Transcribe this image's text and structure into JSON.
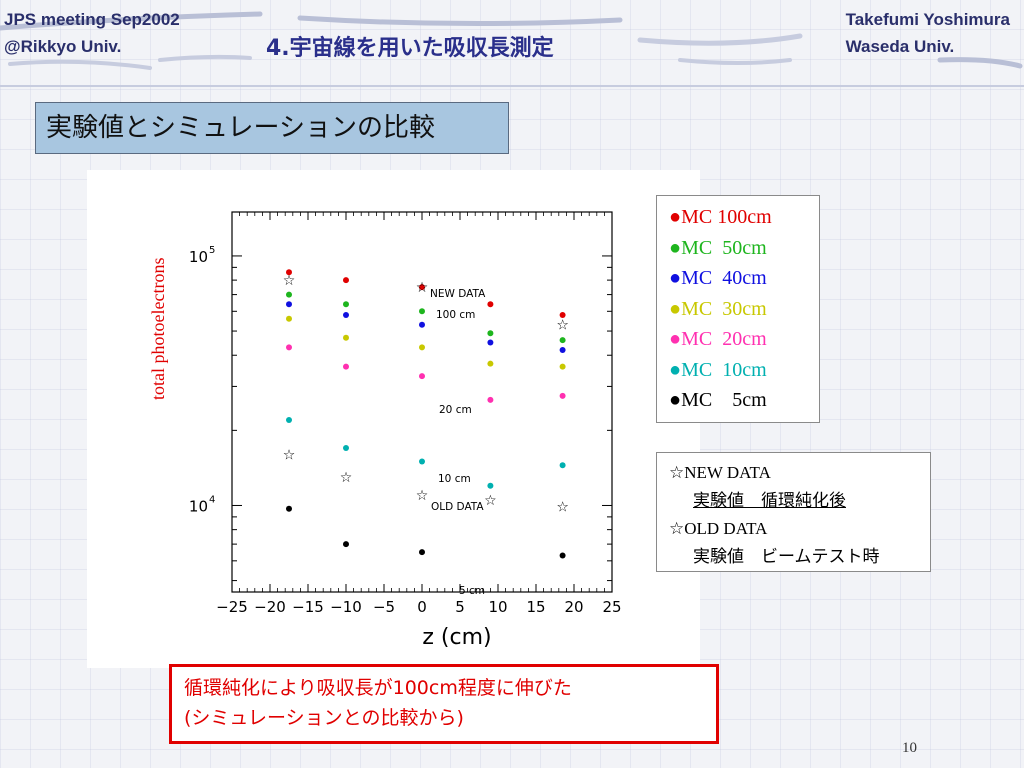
{
  "header": {
    "left_line1": "JPS meeting Sep2002",
    "left_line2": "@Rikkyo Univ.",
    "right_line1": "Takefumi Yoshimura",
    "right_line2": "Waseda Univ.",
    "title": "4.宇宙線を用いた吸収長測定"
  },
  "section_title": "実験値とシミュレーションの比較",
  "legend": {
    "items": [
      {
        "marker": "●",
        "label": "MC 100cm",
        "color": "#e00000"
      },
      {
        "marker": "●",
        "label": "MC  50cm",
        "color": "#1eb51e"
      },
      {
        "marker": "●",
        "label": "MC  40cm",
        "color": "#1010e0"
      },
      {
        "marker": "●",
        "label": "MC  30cm",
        "color": "#c8c800"
      },
      {
        "marker": "●",
        "label": "MC  20cm",
        "color": "#ff30b0"
      },
      {
        "marker": "●",
        "label": "MC  10cm",
        "color": "#00b0b0"
      },
      {
        "marker": "●",
        "label": "MC    5cm",
        "color": "#000000"
      }
    ]
  },
  "notes": {
    "new_data": "☆NEW DATA",
    "new_data_desc": "実験値　循環純化後",
    "old_data": "☆OLD DATA",
    "old_data_desc": "実験値　ビームテスト時"
  },
  "conclusion": {
    "line1": "循環純化により吸収長が100cm程度に伸びた",
    "line2": "(シミュレーションとの比較から)"
  },
  "page_number": "10",
  "chart_data": {
    "type": "scatter",
    "ylabel": "total photoelectrons",
    "xlabel": "z (cm)",
    "xlim": [
      -25,
      25
    ],
    "ylim": [
      4500,
      150000
    ],
    "y_scale": "log",
    "x_ticks": [
      "−25",
      "−20",
      "−15",
      "−10",
      "−5",
      "0",
      "5",
      "10",
      "15",
      "20",
      "25"
    ],
    "y_ticks": [
      {
        "value": 10000,
        "label": "10",
        "exp": "4"
      },
      {
        "value": 100000,
        "label": "10",
        "exp": "5"
      }
    ],
    "x": [
      -17.5,
      -10,
      0,
      9,
      18.5
    ],
    "series": [
      {
        "name": "MC 100cm",
        "color": "#e00000",
        "marker": "dot",
        "values": [
          86000,
          80000,
          75000,
          64000,
          58000
        ]
      },
      {
        "name": "MC  50cm",
        "color": "#1eb51e",
        "marker": "dot",
        "values": [
          70000,
          64000,
          60000,
          49000,
          46000
        ]
      },
      {
        "name": "MC  40cm",
        "color": "#1010e0",
        "marker": "dot",
        "values": [
          64000,
          58000,
          53000,
          45000,
          42000
        ]
      },
      {
        "name": "MC  30cm",
        "color": "#c8c800",
        "marker": "dot",
        "values": [
          56000,
          47000,
          43000,
          37000,
          36000
        ]
      },
      {
        "name": "MC  20cm",
        "color": "#ff30b0",
        "marker": "dot",
        "values": [
          43000,
          36000,
          33000,
          26500,
          27500
        ]
      },
      {
        "name": "MC  10cm",
        "color": "#00b0b0",
        "marker": "dot",
        "values": [
          22000,
          17000,
          15000,
          12000,
          14500
        ]
      },
      {
        "name": "MC    5cm",
        "color": "#000000",
        "marker": "dot",
        "values": [
          9700,
          7000,
          6500,
          null,
          6300
        ]
      },
      {
        "name": "NEW DATA",
        "color": "#000000",
        "marker": "star",
        "values": [
          80000,
          null,
          75000,
          null,
          53000
        ]
      },
      {
        "name": "OLD DATA",
        "color": "#000000",
        "marker": "star",
        "values": [
          16000,
          13000,
          11000,
          10500,
          9900
        ]
      }
    ],
    "annotations": [
      "NEW DATA",
      "100 cm",
      "20 cm",
      "10 cm",
      "OLD DATA",
      "5 cm"
    ]
  }
}
